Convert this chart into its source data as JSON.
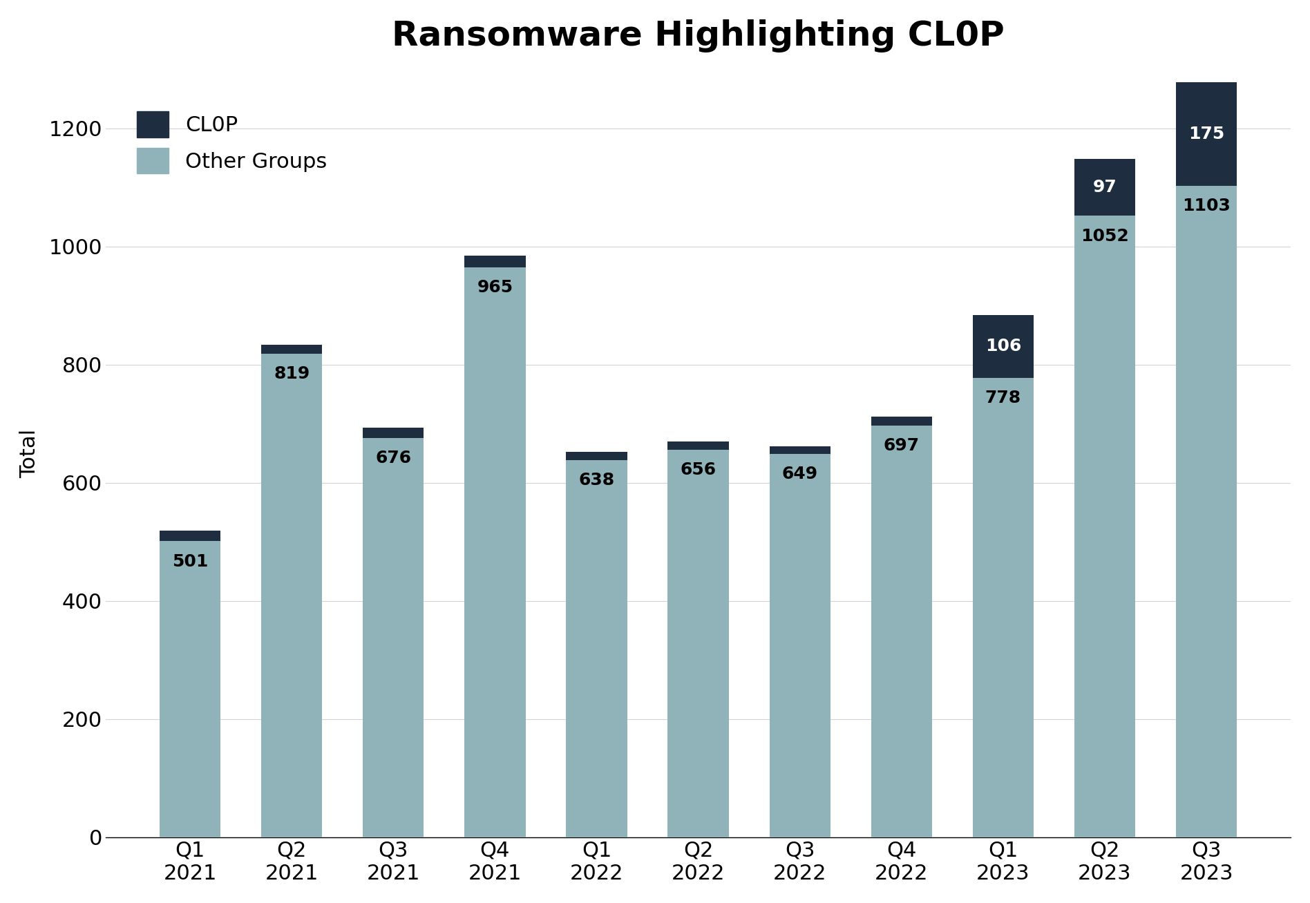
{
  "categories": [
    "Q1\n2021",
    "Q2\n2021",
    "Q3\n2021",
    "Q4\n2021",
    "Q1\n2022",
    "Q2\n2022",
    "Q3\n2022",
    "Q4\n2022",
    "Q1\n2023",
    "Q2\n2023",
    "Q3\n2023"
  ],
  "other_groups": [
    501,
    819,
    676,
    965,
    638,
    656,
    649,
    697,
    778,
    1052,
    1103
  ],
  "clop": [
    18,
    15,
    17,
    20,
    14,
    14,
    13,
    15,
    106,
    97,
    175
  ],
  "clop_color": "#1e2d40",
  "other_color": "#8fb3b8",
  "title": "Ransomware Highlighting CL0P",
  "ylabel": "Total",
  "ylim": [
    0,
    1300
  ],
  "yticks": [
    0,
    200,
    400,
    600,
    800,
    1000,
    1200
  ],
  "title_fontsize": 36,
  "label_fontsize": 22,
  "tick_fontsize": 22,
  "legend_fontsize": 22,
  "bar_label_fontsize": 18,
  "background_color": "#ffffff",
  "show_clop_label": [
    false,
    false,
    false,
    false,
    false,
    false,
    false,
    false,
    true,
    true,
    true
  ],
  "other_label_color": [
    "black",
    "black",
    "black",
    "black",
    "black",
    "black",
    "black",
    "black",
    "black",
    "black",
    "black"
  ]
}
